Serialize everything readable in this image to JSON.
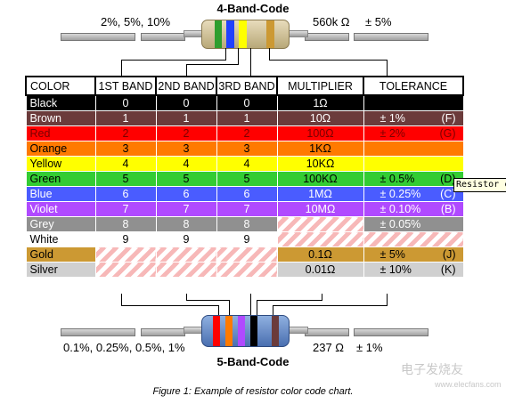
{
  "top": {
    "title": "4-Band-Code",
    "left_label": "2%, 5%, 10%",
    "right_value": "560k Ω",
    "right_tol": "± 5%"
  },
  "bottom": {
    "title": "5-Band-Code",
    "left_label": "0.1%, 0.25%, 0.5%, 1%",
    "right_value": "237 Ω",
    "right_tol": "± 1%"
  },
  "headers": {
    "color": "COLOR",
    "band1": "1ST BAND",
    "band2": "2ND BAND",
    "band3": "3RD BAND",
    "multiplier": "MULTIPLIER",
    "tolerance": "TOLERANCE"
  },
  "rows": [
    {
      "name": "Black",
      "bg": "#000000",
      "fg": "#ffffff",
      "b1": "0",
      "b2": "0",
      "b3": "0",
      "mult": "1Ω",
      "tol": "",
      "code": ""
    },
    {
      "name": "Brown",
      "bg": "#6b3b3b",
      "fg": "#ffffff",
      "b1": "1",
      "b2": "1",
      "b3": "1",
      "mult": "10Ω",
      "tol": "± 1%",
      "code": "(F)"
    },
    {
      "name": "Red",
      "bg": "#ff0000",
      "fg": "#7a0000",
      "b1": "2",
      "b2": "2",
      "b3": "2",
      "mult": "100Ω",
      "tol": "± 2%",
      "code": "(G)"
    },
    {
      "name": "Orange",
      "bg": "#ff7a00",
      "fg": "#000000",
      "b1": "3",
      "b2": "3",
      "b3": "3",
      "mult": "1KΩ",
      "tol": "",
      "code": ""
    },
    {
      "name": "Yellow",
      "bg": "#ffff00",
      "fg": "#000000",
      "b1": "4",
      "b2": "4",
      "b3": "4",
      "mult": "10KΩ",
      "tol": "",
      "code": ""
    },
    {
      "name": "Green",
      "bg": "#33cc33",
      "fg": "#000000",
      "b1": "5",
      "b2": "5",
      "b3": "5",
      "mult": "100KΩ",
      "tol": "± 0.5%",
      "code": "(D)"
    },
    {
      "name": "Blue",
      "bg": "#4a5cff",
      "fg": "#ffffff",
      "b1": "6",
      "b2": "6",
      "b3": "6",
      "mult": "1MΩ",
      "tol": "± 0.25%",
      "code": "(C)"
    },
    {
      "name": "Violet",
      "bg": "#b04aff",
      "fg": "#ffffff",
      "b1": "7",
      "b2": "7",
      "b3": "7",
      "mult": "10MΩ",
      "tol": "± 0.10%",
      "code": "(B)"
    },
    {
      "name": "Grey",
      "bg": "#909090",
      "fg": "#ffffff",
      "b1": "8",
      "b2": "8",
      "b3": "8",
      "mult": "",
      "tol": "± 0.05%",
      "code": ""
    },
    {
      "name": "White",
      "bg": "#ffffff",
      "fg": "#000000",
      "b1": "9",
      "b2": "9",
      "b3": "9",
      "mult": "",
      "tol": "",
      "code": ""
    },
    {
      "name": "Gold",
      "bg": "#cc9933",
      "fg": "#000000",
      "b1": "",
      "b2": "",
      "b3": "",
      "mult": "0.1Ω",
      "tol": "± 5%",
      "code": "(J)"
    },
    {
      "name": "Silver",
      "bg": "#d0d0d0",
      "fg": "#000000",
      "b1": "",
      "b2": "",
      "b3": "",
      "mult": "0.01Ω",
      "tol": "± 10%",
      "code": "(K)"
    }
  ],
  "tooltip": "Resistor c",
  "caption": "Figure 1: Example of resistor color code chart.",
  "watermark": "电子发烧友",
  "watermark_url": "www.elecfans.com"
}
